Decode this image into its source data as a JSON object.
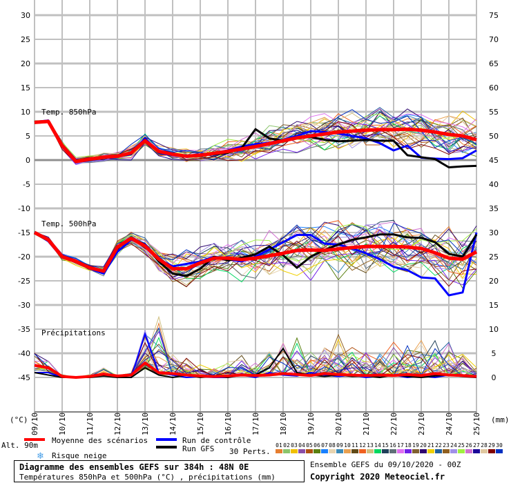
{
  "chart_data": {
    "type": "line",
    "title": "Diagramme des ensembles GEFS sur 384h : 48N 0E",
    "subtitle": "Températures 850hPa et 500hPa (°C) , précipitations (mm)",
    "run_info": "Ensemble GEFS du 09/10/2020 - 00Z",
    "copyright": "Copyright 2020 Meteociel.fr",
    "left_unit": "(°C)",
    "right_unit": "(mm)",
    "altitude": "Alt. 90m",
    "left_ticks": [
      "30",
      "25",
      "20",
      "15",
      "10",
      "5",
      "0",
      "-5",
      "-10",
      "-15",
      "-20",
      "-25",
      "-30",
      "-35",
      "-40",
      "-45"
    ],
    "right_ticks": [
      "75",
      "70",
      "65",
      "60",
      "55",
      "50",
      "45",
      "40",
      "35",
      "30",
      "25",
      "20",
      "15",
      "10",
      "5",
      "0"
    ],
    "ylim_left": [
      -45,
      30
    ],
    "ylim_right_mm": [
      0,
      75
    ],
    "x_dates": [
      "09/10",
      "10/10",
      "11/10",
      "12/10",
      "13/10",
      "14/10",
      "15/10",
      "16/10",
      "17/10",
      "18/10",
      "19/10",
      "20/10",
      "21/10",
      "22/10",
      "23/10",
      "24/10",
      "25/10"
    ],
    "time_step_days": 0.5,
    "panels": {
      "t850": {
        "label": "Temp. 850hPa",
        "mean": [
          7.8,
          8.0,
          3.0,
          -0.3,
          0.2,
          0.6,
          0.8,
          1.5,
          4.0,
          1.8,
          1.2,
          0.8,
          1.0,
          1.4,
          1.8,
          2.3,
          2.8,
          3.4,
          4.0,
          4.6,
          5.0,
          5.4,
          5.8,
          6.0,
          6.2,
          6.3,
          6.3,
          6.4,
          6.2,
          5.8,
          5.3,
          5.0,
          4.2
        ],
        "control": [
          7.9,
          8.2,
          3.2,
          -0.5,
          0.3,
          0.5,
          0.7,
          1.2,
          4.5,
          1.5,
          1.0,
          0.7,
          1.0,
          1.5,
          2.0,
          2.8,
          3.3,
          3.6,
          4.2,
          5.0,
          6.0,
          5.8,
          5.5,
          5.0,
          4.5,
          3.5,
          2.0,
          3.0,
          0.5,
          0.3,
          0.2,
          0.4,
          2.0
        ],
        "gfs": [
          7.8,
          8.1,
          3.0,
          -0.2,
          0.3,
          0.6,
          0.8,
          1.3,
          4.2,
          1.6,
          1.2,
          0.8,
          1.0,
          1.2,
          1.5,
          2.5,
          6.4,
          4.5,
          4.0,
          4.5,
          4.8,
          4.2,
          3.9,
          4.0,
          4.2,
          4.0,
          4.0,
          1.0,
          0.6,
          0.2,
          -1.5,
          -1.3,
          -1.2
        ],
        "spread": [
          0.3,
          0.3,
          0.8,
          0.8,
          0.8,
          0.8,
          0.8,
          1.5,
          1.5,
          1.2,
          1.2,
          1.3,
          1.5,
          1.8,
          2,
          2.3,
          2.5,
          2.8,
          3,
          3.2,
          3.4,
          3.6,
          3.8,
          3.8,
          3.8,
          3.8,
          4,
          4,
          4,
          4.2,
          4.2,
          4.2,
          4.2
        ]
      },
      "t500": {
        "label": "Temp. 500hPa",
        "mean": [
          -15,
          -16.5,
          -20,
          -21,
          -22.3,
          -23,
          -18,
          -16.2,
          -17.8,
          -20.5,
          -22.5,
          -22.5,
          -21.3,
          -20.3,
          -20.3,
          -20.6,
          -20.3,
          -19.8,
          -19.3,
          -18.7,
          -18.6,
          -18.7,
          -18.4,
          -18.1,
          -17.9,
          -17.9,
          -17.9,
          -18.0,
          -18.3,
          -19.2,
          -20.3,
          -20.5,
          -19
        ],
        "control": [
          -15,
          -16.8,
          -20.2,
          -21,
          -22.5,
          -23.5,
          -19,
          -16.5,
          -17.5,
          -20.5,
          -22,
          -21.5,
          -21,
          -20,
          -20.5,
          -21,
          -20,
          -18.5,
          -17,
          -15.5,
          -15.5,
          -17.3,
          -17.5,
          -18.3,
          -19.3,
          -20.5,
          -22.1,
          -22.8,
          -24.3,
          -24.5,
          -28,
          -27.4,
          -15
        ],
        "gfs": [
          -15,
          -16.6,
          -20,
          -21.2,
          -22.4,
          -23,
          -18.3,
          -16,
          -17.6,
          -21,
          -23.5,
          -24,
          -22.5,
          -20,
          -20.8,
          -20.2,
          -19.5,
          -17.9,
          -19.7,
          -22.3,
          -20,
          -18.6,
          -17.5,
          -16.5,
          -16,
          -15.4,
          -15.4,
          -16,
          -16.1,
          -17,
          -19.4,
          -20,
          -15.4
        ],
        "spread": [
          0.3,
          0.4,
          0.6,
          0.6,
          0.7,
          0.8,
          1.5,
          1.2,
          1.5,
          2,
          2.5,
          3,
          3.2,
          3.4,
          3.6,
          3.8,
          4,
          4,
          4.2,
          4.4,
          4.6,
          4.8,
          5,
          5,
          5,
          5,
          5,
          5,
          5.2,
          5.2,
          5.4,
          5.4,
          5.4
        ]
      },
      "precip": {
        "label": "Précipitations",
        "mean": [
          2.5,
          2,
          0.2,
          0,
          0.2,
          0.7,
          0.3,
          0.5,
          3.0,
          1.0,
          0.8,
          0.5,
          0.3,
          0.2,
          0.3,
          0.5,
          0.4,
          0.5,
          0.8,
          0.6,
          0.4,
          0.8,
          0.6,
          0.5,
          0.4,
          0.5,
          0.4,
          0.6,
          0.4,
          0.8,
          0.5,
          0.4,
          0.2
        ],
        "control": [
          1,
          1,
          0,
          0,
          0.3,
          0.5,
          0,
          0,
          9,
          1,
          0.5,
          0,
          0.2,
          0,
          0,
          0.5,
          0,
          1,
          0.5,
          0.3,
          1,
          0.5,
          0.2,
          0.5,
          0,
          0.3,
          0.5,
          0,
          0.3,
          0,
          0.5,
          0.3,
          0
        ],
        "gfs": [
          1,
          0.5,
          0,
          0,
          0,
          0.3,
          0,
          0,
          2,
          0.5,
          0,
          0.5,
          0,
          0.3,
          0,
          0.5,
          0.5,
          2,
          6,
          1,
          0.5,
          0.2,
          0.5,
          0.2,
          0.3,
          0,
          0.5,
          0.2,
          0,
          0.3,
          0.5,
          0.2,
          0
        ],
        "spread": [
          5,
          3,
          0.5,
          0,
          0.5,
          2,
          0.5,
          1,
          9,
          12,
          6,
          4,
          3,
          2,
          3,
          4,
          4,
          6,
          8,
          10,
          8,
          6,
          9,
          7,
          6,
          5,
          7,
          6,
          8,
          7,
          9,
          6,
          4
        ]
      }
    },
    "legend": {
      "mean": "Moyenne des scénarios",
      "control": "Run de contrôle",
      "gfs": "Run GFS",
      "snow": "Risque neige",
      "perts": "30 Perts."
    },
    "series_colors": {
      "mean": "#ff0000",
      "control": "#0000ff",
      "gfs": "#000000"
    },
    "members": [
      {
        "id": "01",
        "color": "#e67e30"
      },
      {
        "id": "02",
        "color": "#8bc46b"
      },
      {
        "id": "03",
        "color": "#f0c000"
      },
      {
        "id": "04",
        "color": "#8b4fa8"
      },
      {
        "id": "05",
        "color": "#b05010"
      },
      {
        "id": "06",
        "color": "#5a8010"
      },
      {
        "id": "07",
        "color": "#1a80ff"
      },
      {
        "id": "08",
        "color": "#e8d4b0"
      },
      {
        "id": "09",
        "color": "#3a8ab8"
      },
      {
        "id": "10",
        "color": "#e8a050"
      },
      {
        "id": "11",
        "color": "#604a18"
      },
      {
        "id": "12",
        "color": "#f06020"
      },
      {
        "id": "13",
        "color": "#d0c080"
      },
      {
        "id": "14",
        "color": "#00d860"
      },
      {
        "id": "15",
        "color": "#20405a"
      },
      {
        "id": "16",
        "color": "#607078"
      },
      {
        "id": "17",
        "color": "#e070f0"
      },
      {
        "id": "18",
        "color": "#7020e8"
      },
      {
        "id": "19",
        "color": "#806030"
      },
      {
        "id": "20",
        "color": "#300870"
      },
      {
        "id": "21",
        "color": "#f0d000"
      },
      {
        "id": "22",
        "color": "#2060a0"
      },
      {
        "id": "23",
        "color": "#906020"
      },
      {
        "id": "24",
        "color": "#a090e8"
      },
      {
        "id": "25",
        "color": "#a0f040"
      },
      {
        "id": "26",
        "color": "#d070d0"
      },
      {
        "id": "27",
        "color": "#1a0898"
      },
      {
        "id": "28",
        "color": "#e0c8a0"
      },
      {
        "id": "29",
        "color": "#800000"
      },
      {
        "id": "30",
        "color": "#0030c0"
      }
    ]
  }
}
